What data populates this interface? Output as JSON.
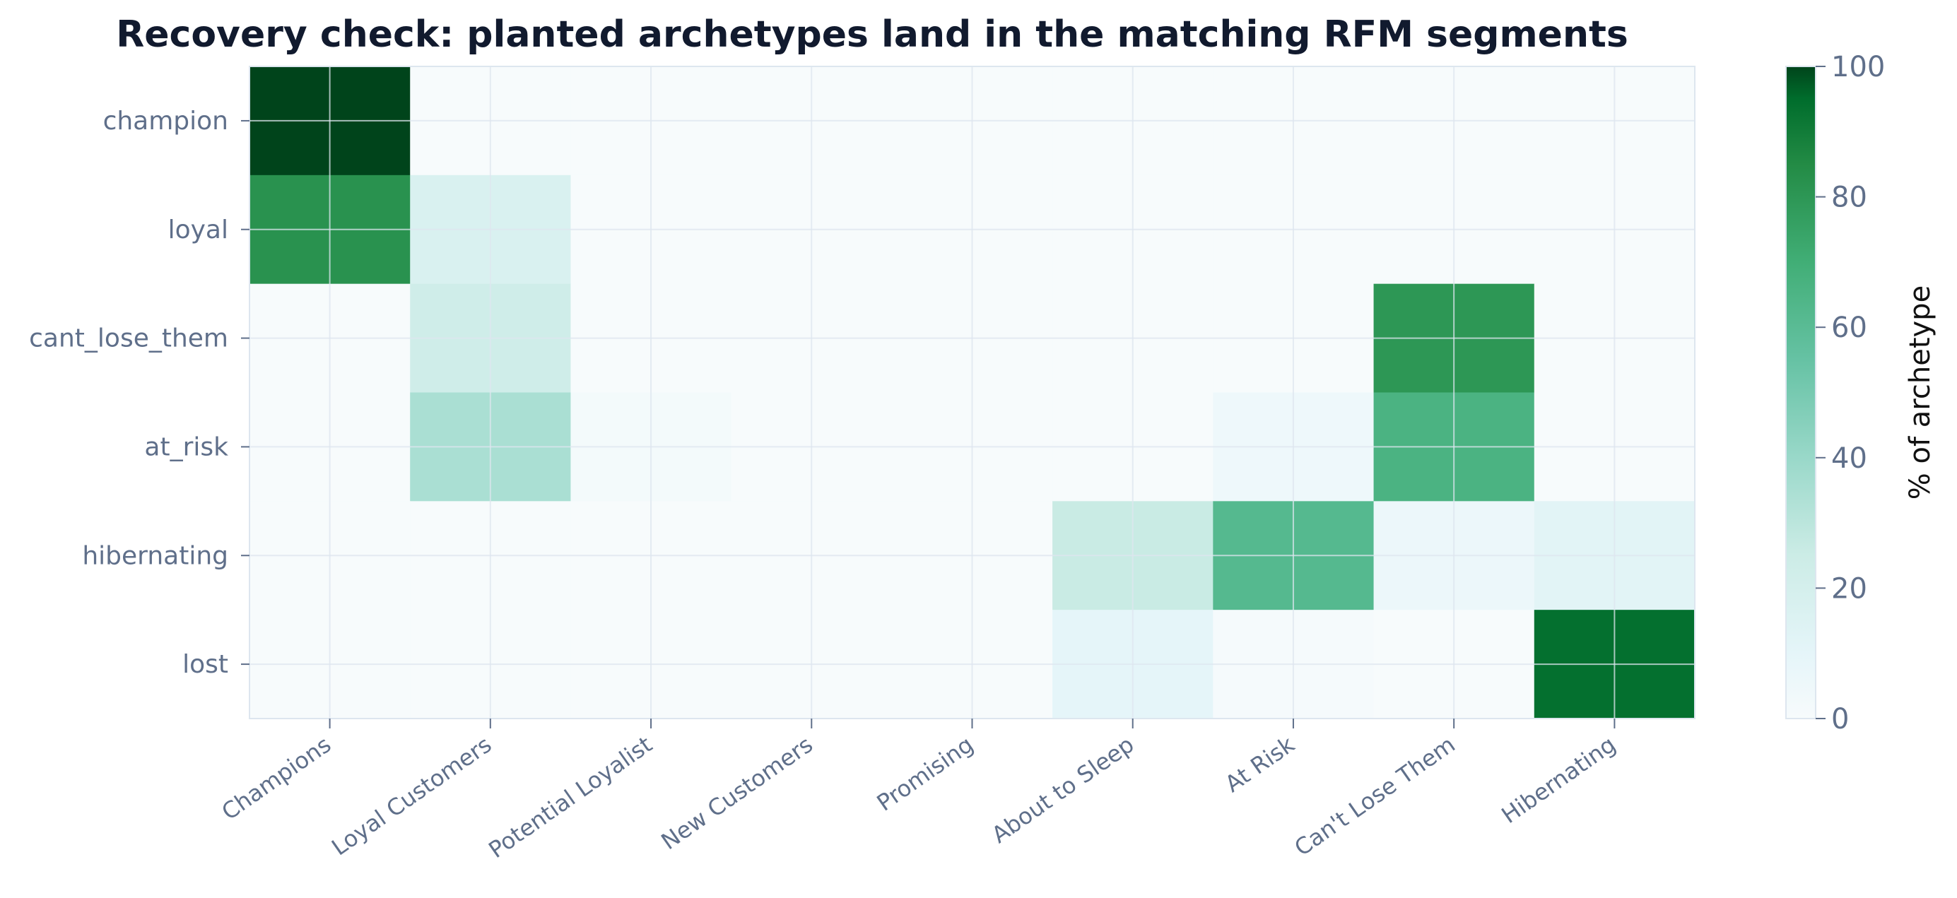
{
  "chart_data": {
    "type": "heatmap",
    "title": "Recovery check: planted archetypes land in the matching RFM segments",
    "rows": [
      "champion",
      "loyal",
      "cant_lose_them",
      "at_risk",
      "hibernating",
      "lost"
    ],
    "columns": [
      "Champions",
      "Loyal Customers",
      "Potential Loyalist",
      "New Customers",
      "Promising",
      "About to Sleep",
      "At Risk",
      "Can't Lose Them",
      "Hibernating"
    ],
    "values": [
      [
        100,
        0,
        0,
        0,
        0,
        0,
        0,
        0,
        0
      ],
      [
        82,
        17,
        0,
        0,
        0,
        0,
        0,
        0,
        0
      ],
      [
        0,
        23,
        0,
        0,
        0,
        0,
        0,
        80,
        0
      ],
      [
        0,
        35,
        2,
        0,
        0,
        0,
        5,
        66,
        0
      ],
      [
        0,
        0,
        0,
        0,
        0,
        26,
        62,
        6,
        12
      ],
      [
        0,
        0,
        0,
        0,
        0,
        10,
        1,
        0,
        94
      ]
    ],
    "colorbar": {
      "label": "% of archetype",
      "min": 0,
      "max": 100,
      "ticks": [
        "0",
        "20",
        "40",
        "60",
        "80",
        "100"
      ]
    },
    "colormap": "Greens",
    "colors": {
      "low": "#f7fbfc",
      "high": "#00441b",
      "grid": "#dde6ef",
      "axis": "#dde6ef",
      "tick": "#5f6f8a",
      "title": "#111a2e"
    },
    "grid": true
  }
}
